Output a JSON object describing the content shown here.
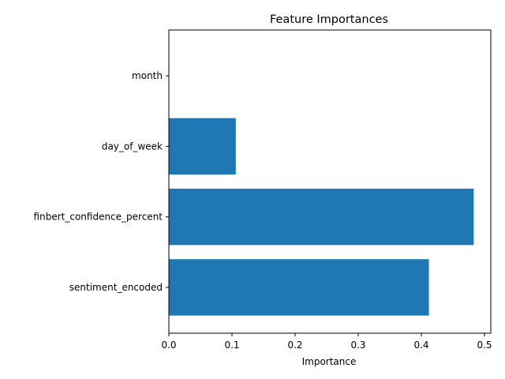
{
  "chart_data": {
    "type": "bar",
    "orientation": "horizontal",
    "title": "Feature Importances",
    "xlabel": "Importance",
    "ylabel": "",
    "categories": [
      "sentiment_encoded",
      "finbert_confidence_percent",
      "day_of_week",
      "month"
    ],
    "values": [
      0.412,
      0.483,
      0.106,
      0.0
    ],
    "xlim": [
      0,
      0.51
    ],
    "xticks": [
      0.0,
      0.1,
      0.2,
      0.3,
      0.4,
      0.5
    ],
    "xtick_labels": [
      "0.0",
      "0.1",
      "0.2",
      "0.3",
      "0.4",
      "0.5"
    ],
    "bar_color": "#1f77b4",
    "grid": false,
    "legend": "none"
  }
}
